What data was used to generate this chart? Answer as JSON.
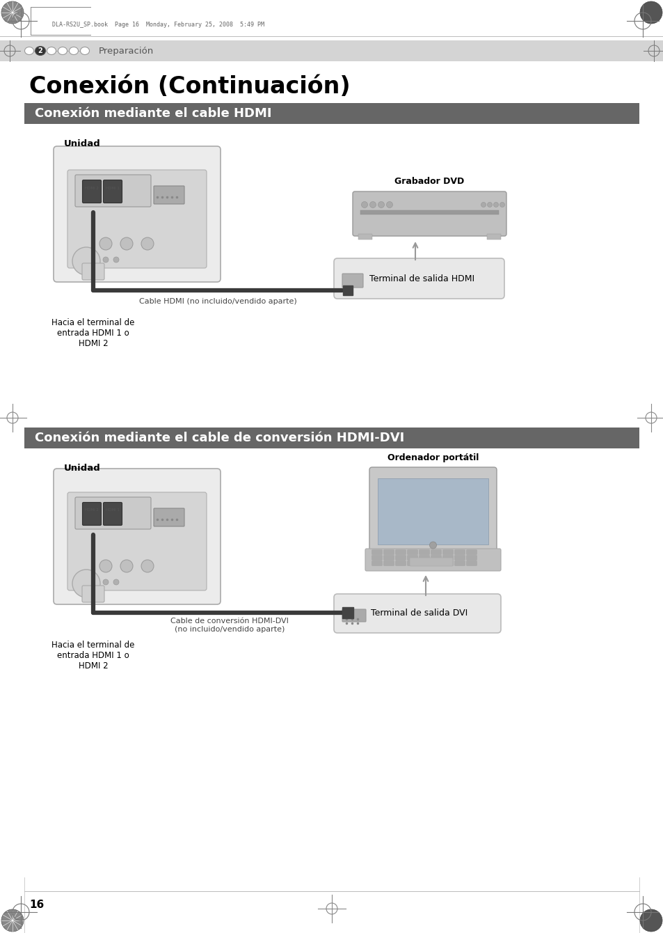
{
  "page_title": "Conexión (Continuación)",
  "header_text": "DLA-RS2U_SP.book  Page 16  Monday, February 25, 2008  5:49 PM",
  "nav_label": "Preparación",
  "nav_step": "2",
  "section1_title": "Conexión mediante el cable HDMI",
  "section1_label_unit": "Unidad",
  "section1_label_dvd": "Grabador DVD",
  "section1_cable_label": "Cable HDMI (no incluido/vendido aparte)",
  "section1_terminal_label": "Terminal de salida HDMI",
  "section1_hdmi_label": "Hacia el terminal de\nentrada HDMI 1 o\nHDMI 2",
  "section2_title": "Conexión mediante el cable de conversión HDMI-DVI",
  "section2_label_unit": "Unidad",
  "section2_label_laptop": "Ordenador portátil",
  "section2_cable_label": "Cable de conversión HDMI-DVI\n(no incluido/vendido aparte)",
  "section2_terminal_label": "Terminal de salida DVI",
  "section2_hdmi_label": "Hacia el terminal de\nentrada HDMI 1 o\nHDMI 2",
  "page_number": "16",
  "bg_color": "#ffffff",
  "nav_bg_color": "#d4d4d4",
  "section_bar_color": "#666666",
  "section_text_color": "#ffffff",
  "body_text_color": "#000000",
  "projector_body_color": "#e8e8e8",
  "projector_panel_color": "#d8d8d8",
  "port_dark": "#555555",
  "cable_color": "#3a3a3a",
  "dvd_body_color": "#c0c0c0",
  "callout_fill": "#e4e4e4",
  "crosshair_color": "#666666",
  "mid_crosshair_color": "#888888"
}
